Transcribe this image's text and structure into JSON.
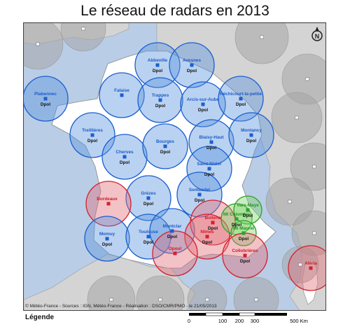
{
  "title": "Le réseau de radars en 2013",
  "credits": "© Météo-France - Sources : IGN, Météo-France - Réalisation : DSO/CMR/PMO - le 21/05/2013",
  "legend_title": "Légende",
  "scale_labels": [
    "0",
    "100",
    "200",
    "300",
    "500 Km"
  ],
  "north_label": "N",
  "colors": {
    "sea": "#b9cde6",
    "land_abroad": "#d4d4d4",
    "france": "#ffffff",
    "dpol_fill": "#5b93de",
    "dpol_stroke": "#1a5fd0",
    "dpol_text": "#1e5bc6",
    "red_fill": "#e26d78",
    "red_stroke": "#d4202e",
    "red_text": "#d01a26",
    "green_fill": "#7fd36b",
    "green_stroke": "#2ea12a",
    "green_text": "#2b8f25",
    "gray_fill": "#a6a6a6"
  },
  "radars": [
    {
      "name": "Abbeville",
      "status": "Dpol",
      "color": "blue"
    },
    {
      "name": "Avesnes",
      "status": "Dpol",
      "color": "blue"
    },
    {
      "name": "Plabennec",
      "status": "Dpol",
      "color": "blue"
    },
    {
      "name": "Falaise",
      "status": "",
      "color": "blue"
    },
    {
      "name": "Trappes",
      "status": "Dpol",
      "color": "blue"
    },
    {
      "name": "Arcis-sur-Aube",
      "status": "Dpol",
      "color": "blue"
    },
    {
      "name": "Réchicourt-la-petite",
      "status": "Dpol",
      "color": "blue"
    },
    {
      "name": "Treillières",
      "status": "Dpol",
      "color": "blue"
    },
    {
      "name": "Cherves",
      "status": "Dpol",
      "color": "blue"
    },
    {
      "name": "Bourges",
      "status": "Dpol",
      "color": "blue"
    },
    {
      "name": "Blaisy-Haut",
      "status": "Dpol",
      "color": "blue"
    },
    {
      "name": "Montancy",
      "status": "Dpol",
      "color": "blue"
    },
    {
      "name": "Saint-Nizier",
      "status": "Dpol",
      "color": "blue"
    },
    {
      "name": "Sembadel",
      "status": "Dpol",
      "color": "blue"
    },
    {
      "name": "Grèzes",
      "status": "Dpol",
      "color": "blue"
    },
    {
      "name": "Bordeaux",
      "status": "",
      "color": "red"
    },
    {
      "name": "Momuy",
      "status": "Dpol",
      "color": "blue"
    },
    {
      "name": "Toulouse",
      "status": "Dpol",
      "color": "blue"
    },
    {
      "name": "Montclar",
      "status": "Dpol",
      "color": "blue"
    },
    {
      "name": "Bollène",
      "status": "Dpol",
      "color": "red"
    },
    {
      "name": "Nîmes",
      "status": "Dpol",
      "color": "red"
    },
    {
      "name": "Opoul",
      "status": "",
      "color": "red"
    },
    {
      "name": "Mt Colombis",
      "status": "Dpol",
      "color": "green"
    },
    {
      "name": "Vars-Maye",
      "status": "Dpol",
      "color": "green"
    },
    {
      "name": "Mt Maurel",
      "status": "Dpol",
      "color": "green"
    },
    {
      "name": "Collobrières",
      "status": "Dpol",
      "color": "red"
    },
    {
      "name": "Aléria",
      "status": "",
      "color": "red"
    }
  ]
}
